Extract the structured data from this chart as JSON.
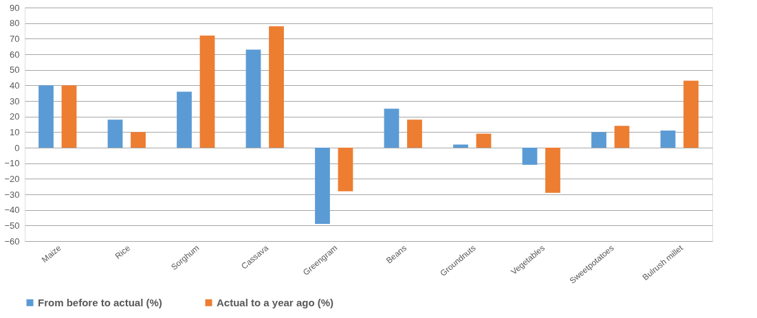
{
  "chart_data": {
    "type": "bar",
    "categories": [
      "Maize",
      "Rice",
      "Sorghum",
      "Cassava",
      "Greengram",
      "Beans",
      "Groundnuts",
      "Vegetables",
      "Sweetpotatoes",
      "Bulrush millet"
    ],
    "series": [
      {
        "name": "From before to actual (%)",
        "color": "#5b9bd5",
        "values": [
          40,
          18,
          36,
          63,
          -49,
          25,
          2,
          -11,
          10,
          11
        ]
      },
      {
        "name": "Actual to a year ago (%)",
        "color": "#ed7d31",
        "values": [
          40,
          10,
          72,
          78,
          -28,
          18,
          9,
          -29,
          14,
          43
        ]
      }
    ],
    "ylim": [
      -60,
      90
    ],
    "yticks": [
      -60,
      -50,
      -40,
      -30,
      -20,
      -10,
      0,
      10,
      20,
      30,
      40,
      50,
      60,
      70,
      80,
      90
    ],
    "grid": "y",
    "legend": "bottom"
  }
}
